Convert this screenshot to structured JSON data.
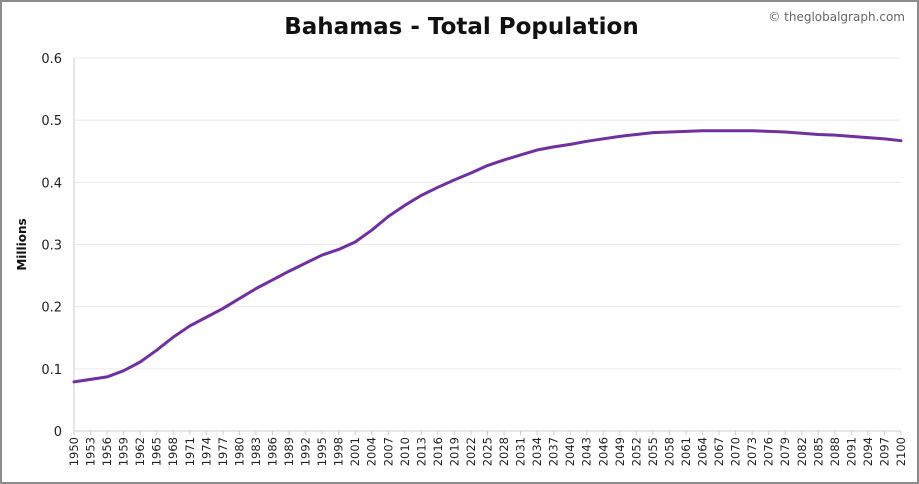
{
  "watermark": "© theglobalgraph.com",
  "chart_data": {
    "type": "line",
    "title": "Bahamas - Total Population",
    "xlabel": "",
    "ylabel": "Millions",
    "ylim": [
      0,
      0.6
    ],
    "yticks": [
      "0",
      "0.1",
      "0.2",
      "0.3",
      "0.4",
      "0.5",
      "0.6"
    ],
    "xlim": [
      1950,
      2100
    ],
    "xticks": [
      1950,
      1953,
      1956,
      1959,
      1962,
      1965,
      1968,
      1971,
      1974,
      1977,
      1980,
      1983,
      1986,
      1989,
      1992,
      1995,
      1998,
      2001,
      2004,
      2007,
      2010,
      2013,
      2016,
      2019,
      2022,
      2025,
      2028,
      2031,
      2034,
      2037,
      2040,
      2043,
      2046,
      2049,
      2052,
      2055,
      2058,
      2061,
      2064,
      2067,
      2070,
      2073,
      2076,
      2079,
      2082,
      2085,
      2088,
      2091,
      2094,
      2097,
      2100
    ],
    "grid": true,
    "colors": {
      "line": "#7030a0",
      "grid": "#ebebeb",
      "axis": "#cccccc"
    },
    "series": [
      {
        "x": [
          1950,
          1953,
          1956,
          1959,
          1962,
          1965,
          1968,
          1971,
          1974,
          1977,
          1980,
          1983,
          1986,
          1989,
          1992,
          1995,
          1998,
          2001,
          2004,
          2007,
          2010,
          2013,
          2016,
          2019,
          2022,
          2025,
          2028,
          2031,
          2034,
          2037,
          2040,
          2043,
          2046,
          2049,
          2052,
          2055,
          2058,
          2061,
          2064,
          2067,
          2070,
          2073,
          2076,
          2079,
          2082,
          2085,
          2088,
          2091,
          2094,
          2097,
          2100
        ],
        "values": [
          0.079,
          0.083,
          0.087,
          0.097,
          0.111,
          0.13,
          0.151,
          0.169,
          0.183,
          0.197,
          0.213,
          0.229,
          0.243,
          0.257,
          0.27,
          0.283,
          0.292,
          0.304,
          0.323,
          0.345,
          0.363,
          0.379,
          0.392,
          0.404,
          0.415,
          0.427,
          0.436,
          0.444,
          0.452,
          0.457,
          0.461,
          0.466,
          0.47,
          0.474,
          0.477,
          0.48,
          0.481,
          0.482,
          0.483,
          0.483,
          0.483,
          0.483,
          0.482,
          0.481,
          0.479,
          0.477,
          0.476,
          0.474,
          0.472,
          0.47,
          0.467
        ]
      }
    ]
  }
}
